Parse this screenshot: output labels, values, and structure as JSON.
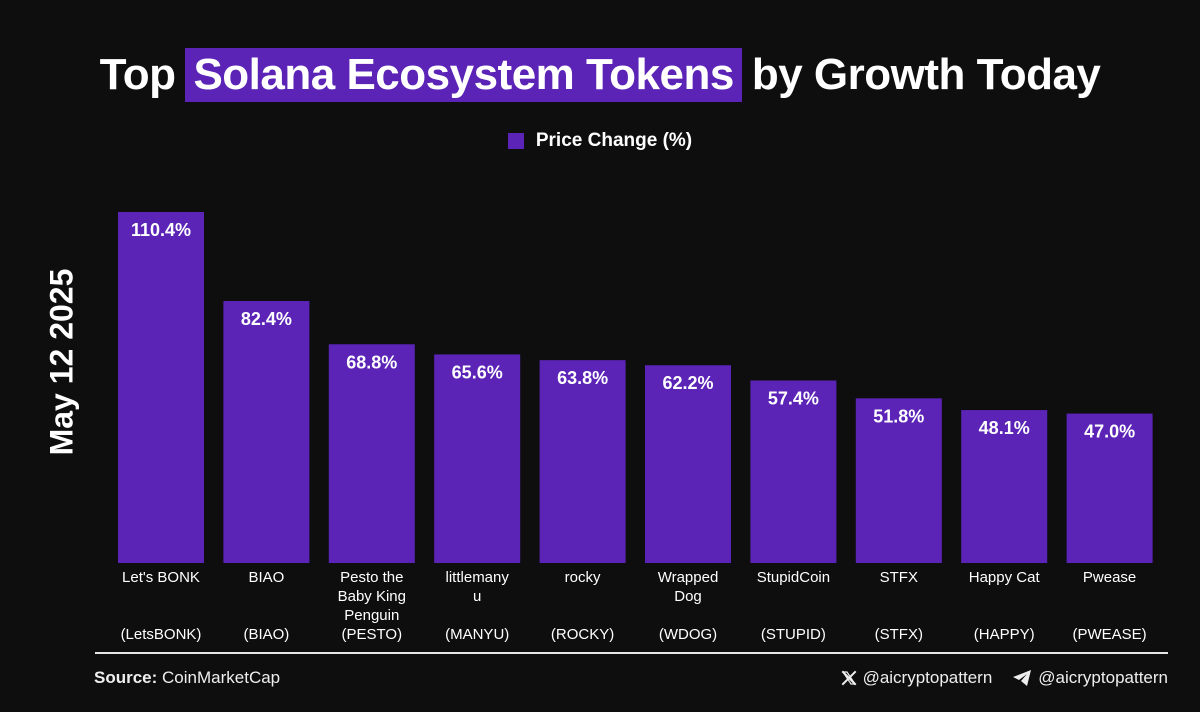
{
  "title": {
    "before": "Top",
    "highlight": "Solana Ecosystem Tokens",
    "after": "by Growth Today"
  },
  "legend": {
    "label": "Price Change (%)"
  },
  "side_label": "May 12 2025",
  "colors": {
    "background": "#0e0e0e",
    "bar": "#5b24b7",
    "text": "#ffffff",
    "rule": "#e6e6e6"
  },
  "chart_data": {
    "type": "bar",
    "categories": [
      [
        "Let's BONK"
      ],
      [
        "BIAO"
      ],
      [
        "Pesto the",
        "Baby King",
        "Penguin"
      ],
      [
        "littlemany",
        "u"
      ],
      [
        "rocky"
      ],
      [
        "Wrapped",
        "Dog"
      ],
      [
        "StupidCoin"
      ],
      [
        "STFX"
      ],
      [
        "Happy Cat"
      ],
      [
        "Pwease"
      ]
    ],
    "tickers": [
      "(LetsBONK)",
      "(BIAO)",
      "(PESTO)",
      "(MANYU)",
      "(ROCKY)",
      "(WDOG)",
      "(STUPID)",
      "(STFX)",
      "(HAPPY)",
      "(PWEASE)"
    ],
    "series": [
      {
        "name": "Price Change (%)",
        "values": [
          110.4,
          82.4,
          68.8,
          65.6,
          63.8,
          62.2,
          57.4,
          51.8,
          48.1,
          47.0
        ],
        "labels": [
          "110.4%",
          "82.4%",
          "68.8%",
          "65.6%",
          "63.8%",
          "62.2%",
          "57.4%",
          "51.8%",
          "48.1%",
          "47.0%"
        ]
      }
    ],
    "ylim": [
      0,
      110.4
    ],
    "grid": false,
    "legend_position": "top-center"
  },
  "footer": {
    "source_label": "Source:",
    "source_value": "CoinMarketCap",
    "x_handle": "@aicryptopattern",
    "telegram_handle": "@aicryptopattern",
    "x_icon": "x-logo-icon",
    "telegram_icon": "telegram-icon"
  }
}
